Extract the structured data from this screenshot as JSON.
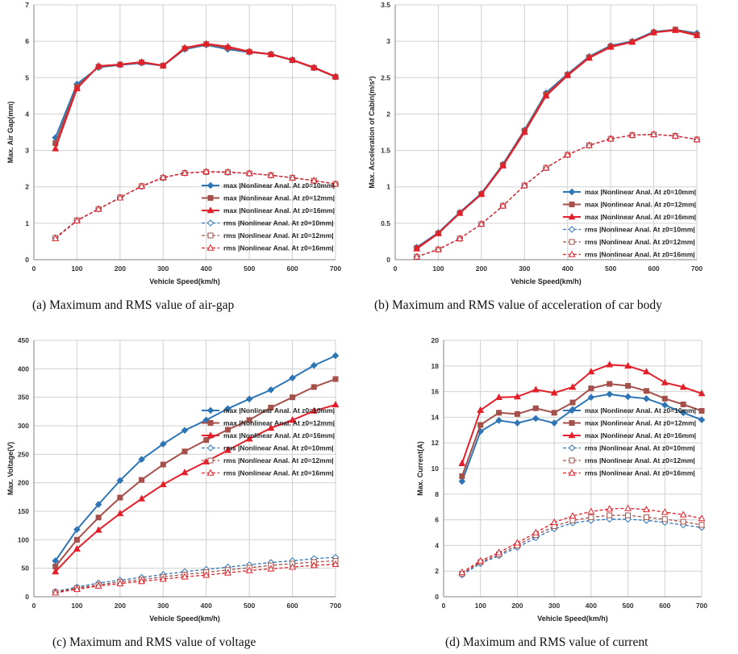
{
  "figure": {
    "captions": [
      "(a) Maximum and RMS value of air-gap",
      "(b) Maximum and RMS value of acceleration of car body",
      "(c) Maximum and RMS value of voltage",
      "(d) Maximum and RMS value of current"
    ]
  },
  "legend_labels": [
    "max |Nonlinear Anal. At z0=10mm|",
    "max |Nonlinear Anal. At z0=12mm|",
    "max |Nonlinear Anal. At z0=16mm|",
    "rms |Nonlinear Anal. At z0=10mm|",
    "rms |Nonlinear Anal. At z0=12mm|",
    "rms |Nonlinear Anal. At z0=16mm|"
  ],
  "colors": {
    "z10": "#2E75B6",
    "z12": "#A5504A",
    "z16": "#E3202A",
    "grid": "#d0d0d0"
  },
  "chart_data": [
    {
      "type": "line",
      "xlabel": "Vehicle Speed(km/h)",
      "ylabel": "Max. Air Gap(mm)",
      "xlim": [
        0,
        700
      ],
      "ylim": [
        0,
        7
      ],
      "xticks": [
        0,
        100,
        200,
        300,
        400,
        500,
        600,
        700
      ],
      "yticks": [
        0,
        1,
        2,
        3,
        4,
        5,
        6,
        7
      ],
      "grid": true,
      "legend_position": "bottom-right",
      "x": [
        50,
        100,
        150,
        200,
        250,
        300,
        350,
        400,
        450,
        500,
        550,
        600,
        650,
        700
      ],
      "series": [
        {
          "name": "max |Nonlinear Anal. At z0=10mm|",
          "values": [
            3.35,
            4.82,
            5.28,
            5.35,
            5.4,
            5.33,
            5.78,
            5.9,
            5.78,
            5.7,
            5.65,
            5.48,
            5.27,
            5.02
          ]
        },
        {
          "name": "max |Nonlinear Anal. At z0=12mm|",
          "values": [
            3.2,
            4.75,
            5.3,
            5.36,
            5.42,
            5.33,
            5.8,
            5.92,
            5.82,
            5.71,
            5.64,
            5.48,
            5.27,
            5.02
          ]
        },
        {
          "name": "max |Nonlinear Anal. At z0=16mm|",
          "values": [
            3.05,
            4.7,
            5.32,
            5.36,
            5.43,
            5.33,
            5.82,
            5.93,
            5.85,
            5.72,
            5.64,
            5.49,
            5.28,
            5.03
          ]
        },
        {
          "name": "rms |Nonlinear Anal. At z0=10mm|",
          "values": [
            0.6,
            1.08,
            1.39,
            1.71,
            2.01,
            2.25,
            2.38,
            2.41,
            2.4,
            2.37,
            2.32,
            2.25,
            2.17,
            2.08
          ]
        },
        {
          "name": "rms |Nonlinear Anal. At z0=12mm|",
          "values": [
            0.6,
            1.08,
            1.39,
            1.71,
            2.02,
            2.25,
            2.38,
            2.41,
            2.4,
            2.37,
            2.32,
            2.25,
            2.17,
            2.08
          ]
        },
        {
          "name": "rms |Nonlinear Anal. At z0=16mm|",
          "values": [
            0.58,
            1.07,
            1.39,
            1.7,
            2.02,
            2.26,
            2.38,
            2.42,
            2.41,
            2.37,
            2.32,
            2.25,
            2.17,
            2.08
          ]
        }
      ]
    },
    {
      "type": "line",
      "xlabel": "Vehicle Speed(km/h)",
      "ylabel": "Max. Acceleration of Cabin(m/s²)",
      "xlim": [
        0,
        700
      ],
      "ylim": [
        0,
        3.5
      ],
      "xticks": [
        0,
        100,
        200,
        300,
        400,
        500,
        600,
        700
      ],
      "yticks": [
        0,
        0.5,
        1,
        1.5,
        2,
        2.5,
        3,
        3.5
      ],
      "grid": true,
      "legend_position": "bottom-right",
      "x": [
        50,
        100,
        150,
        200,
        250,
        300,
        350,
        400,
        450,
        500,
        550,
        600,
        650,
        700
      ],
      "series": [
        {
          "name": "max |Nonlinear Anal. At z0=10mm|",
          "values": [
            0.17,
            0.37,
            0.65,
            0.91,
            1.31,
            1.78,
            2.29,
            2.55,
            2.79,
            2.94,
            3.0,
            3.13,
            3.16,
            3.11
          ]
        },
        {
          "name": "max |Nonlinear Anal. At z0=12mm|",
          "values": [
            0.16,
            0.36,
            0.64,
            0.9,
            1.3,
            1.77,
            2.27,
            2.54,
            2.78,
            2.93,
            2.99,
            3.12,
            3.16,
            3.09
          ]
        },
        {
          "name": "max |Nonlinear Anal. At z0=16mm|",
          "values": [
            0.15,
            0.36,
            0.64,
            0.9,
            1.29,
            1.75,
            2.25,
            2.53,
            2.77,
            2.92,
            2.99,
            3.12,
            3.15,
            3.08
          ]
        },
        {
          "name": "rms |Nonlinear Anal. At z0=10mm|",
          "values": [
            0.04,
            0.14,
            0.29,
            0.49,
            0.74,
            1.02,
            1.26,
            1.44,
            1.57,
            1.66,
            1.71,
            1.72,
            1.7,
            1.65
          ]
        },
        {
          "name": "rms |Nonlinear Anal. At z0=12mm|",
          "values": [
            0.04,
            0.14,
            0.29,
            0.49,
            0.74,
            1.02,
            1.26,
            1.44,
            1.57,
            1.66,
            1.71,
            1.72,
            1.7,
            1.65
          ]
        },
        {
          "name": "rms |Nonlinear Anal. At z0=16mm|",
          "values": [
            0.04,
            0.14,
            0.29,
            0.49,
            0.74,
            1.02,
            1.26,
            1.44,
            1.57,
            1.66,
            1.71,
            1.72,
            1.7,
            1.65
          ]
        }
      ]
    },
    {
      "type": "line",
      "xlabel": "Vehicle Speed(km/h)",
      "ylabel": "Max. Voltage(V)",
      "xlim": [
        0,
        700
      ],
      "ylim": [
        0,
        450
      ],
      "xticks": [
        0,
        100,
        200,
        300,
        400,
        500,
        600,
        700
      ],
      "yticks": [
        0,
        50,
        100,
        150,
        200,
        250,
        300,
        350,
        400,
        450
      ],
      "grid": true,
      "legend_position": "bottom-right",
      "x": [
        50,
        100,
        150,
        200,
        250,
        300,
        350,
        400,
        450,
        500,
        550,
        600,
        650,
        700
      ],
      "series": [
        {
          "name": "max |Nonlinear Anal. At z0=10mm|",
          "values": [
            63,
            118,
            162,
            204,
            241,
            268,
            292,
            310,
            330,
            347,
            363,
            384,
            406,
            423
          ]
        },
        {
          "name": "max |Nonlinear Anal. At z0=12mm|",
          "values": [
            53,
            100,
            139,
            174,
            205,
            232,
            255,
            275,
            293,
            310,
            332,
            350,
            368,
            382
          ]
        },
        {
          "name": "max |Nonlinear Anal. At z0=16mm|",
          "values": [
            44,
            84,
            117,
            146,
            172,
            197,
            218,
            237,
            257,
            277,
            296,
            310,
            326,
            337
          ]
        },
        {
          "name": "rms |Nonlinear Anal. At z0=10mm|",
          "values": [
            9,
            17,
            24,
            29,
            34,
            39,
            44,
            48,
            52,
            56,
            60,
            63,
            67,
            69
          ]
        },
        {
          "name": "rms |Nonlinear Anal. At z0=12mm|",
          "values": [
            8,
            15,
            21,
            26,
            30,
            35,
            39,
            43,
            47,
            51,
            55,
            58,
            61,
            63
          ]
        },
        {
          "name": "rms |Nonlinear Anal. At z0=16mm|",
          "values": [
            7,
            13,
            19,
            23,
            27,
            31,
            35,
            38,
            42,
            46,
            49,
            52,
            55,
            57
          ]
        }
      ]
    },
    {
      "type": "line",
      "xlabel": "Vehicle Speed(km/h)",
      "ylabel": "Max. Current(A)",
      "xlim": [
        0,
        700
      ],
      "ylim": [
        0,
        20
      ],
      "xticks": [
        0,
        100,
        200,
        300,
        400,
        500,
        600,
        700
      ],
      "yticks": [
        0,
        2,
        4,
        6,
        8,
        10,
        12,
        14,
        16,
        18,
        20
      ],
      "grid": true,
      "legend_position": "right",
      "x": [
        50,
        100,
        150,
        200,
        250,
        300,
        350,
        400,
        450,
        500,
        550,
        600,
        650,
        700
      ],
      "series": [
        {
          "name": "max |Nonlinear Anal. At z0=10mm|",
          "values": [
            9.0,
            12.9,
            13.75,
            13.55,
            13.9,
            13.55,
            14.6,
            15.55,
            15.8,
            15.6,
            15.45,
            14.95,
            14.35,
            13.8
          ]
        },
        {
          "name": "max |Nonlinear Anal. At z0=12mm|",
          "values": [
            9.4,
            13.4,
            14.35,
            14.25,
            14.7,
            14.35,
            15.15,
            16.25,
            16.6,
            16.45,
            16.05,
            15.45,
            15.0,
            14.5
          ]
        },
        {
          "name": "max |Nonlinear Anal. At z0=16mm|",
          "values": [
            10.4,
            14.55,
            15.55,
            15.6,
            16.15,
            15.9,
            16.35,
            17.55,
            18.1,
            18.0,
            17.55,
            16.7,
            16.35,
            15.85
          ]
        },
        {
          "name": "rms |Nonlinear Anal. At z0=10mm|",
          "values": [
            1.7,
            2.6,
            3.2,
            3.85,
            4.6,
            5.3,
            5.75,
            5.95,
            6.05,
            6.05,
            5.95,
            5.8,
            5.6,
            5.4
          ]
        },
        {
          "name": "rms |Nonlinear Anal. At z0=12mm|",
          "values": [
            1.8,
            2.7,
            3.3,
            4.0,
            4.8,
            5.5,
            5.95,
            6.2,
            6.35,
            6.35,
            6.2,
            6.05,
            5.85,
            5.6
          ]
        },
        {
          "name": "rms |Nonlinear Anal. At z0=16mm|",
          "values": [
            1.9,
            2.8,
            3.45,
            4.2,
            5.0,
            5.8,
            6.3,
            6.65,
            6.85,
            6.9,
            6.8,
            6.6,
            6.4,
            6.1
          ]
        }
      ]
    }
  ]
}
